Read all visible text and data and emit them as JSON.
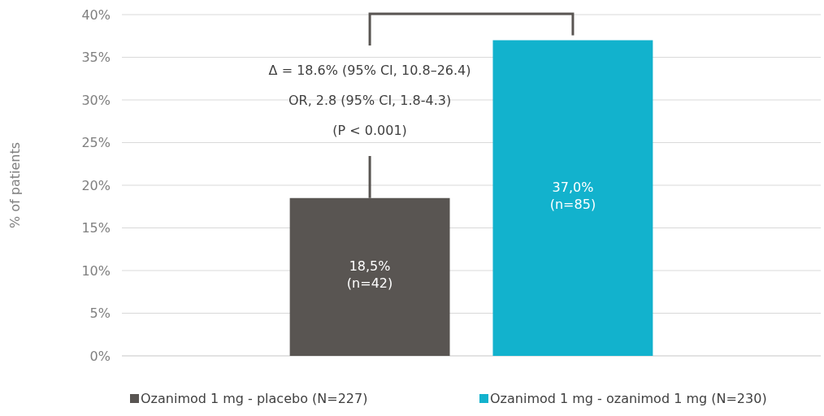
{
  "chart_data": {
    "type": "bar",
    "ylabel": "% of patients",
    "categories": [
      null
    ],
    "series": [
      {
        "name": "Ozanimod 1 mg - placebo (N=227)",
        "color": "#595552",
        "values": [
          18.5
        ],
        "value_labels": [
          "18,5%\n(n=42)"
        ]
      },
      {
        "name": "Ozanimod  1 mg - ozanimod 1 mg (N=230)",
        "color": "#12b2cd",
        "values": [
          37.0
        ],
        "value_labels": [
          "37,0%\n(n=85)"
        ]
      }
    ],
    "ylim": [
      0,
      40
    ],
    "yticks": [
      {
        "value": 0,
        "label": "0%"
      },
      {
        "value": 5,
        "label": "5%"
      },
      {
        "value": 10,
        "label": "10%"
      },
      {
        "value": 15,
        "label": "15%"
      },
      {
        "value": 20,
        "label": "20%"
      },
      {
        "value": 25,
        "label": "25%"
      },
      {
        "value": 30,
        "label": "30%"
      },
      {
        "value": 35,
        "label": "35%"
      },
      {
        "value": 40,
        "label": "40%"
      }
    ],
    "grid": "y",
    "legend": "bottom",
    "annotations": [
      "Δ = 18.6% (95% CI, 10.8–26.4)",
      "OR, 2.8 (95% CI, 1.8-4.3)",
      "(P < 0.001)"
    ]
  }
}
